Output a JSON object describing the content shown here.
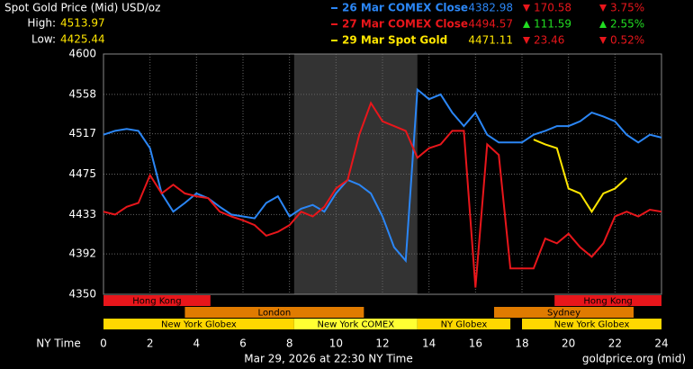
{
  "chart_data": {
    "type": "line",
    "title": "Spot Gold Price (Mid) USD/oz",
    "high_label": "High:",
    "high": 4513.97,
    "low_label": "Low:",
    "low": 4425.44,
    "xlabel": "NY Time",
    "xlim": [
      0,
      24
    ],
    "xticks": [
      0,
      2,
      4,
      6,
      8,
      10,
      12,
      14,
      16,
      18,
      20,
      22,
      24
    ],
    "ylim": [
      4350,
      4600
    ],
    "yticks": [
      4350,
      4392,
      4433,
      4475,
      4517,
      4558,
      4600
    ],
    "grid": true,
    "x": [
      0,
      0.5,
      1,
      1.5,
      2,
      2.5,
      3,
      3.5,
      4,
      4.5,
      5,
      5.5,
      6,
      6.5,
      7,
      7.5,
      8,
      8.5,
      9,
      9.5,
      10,
      10.5,
      11,
      11.5,
      12,
      12.5,
      13,
      13.5,
      14,
      14.5,
      15,
      15.5,
      16,
      16.5,
      17,
      17.5,
      18,
      18.5,
      19,
      19.5,
      20,
      20.5,
      21,
      21.5,
      22,
      22.5,
      23,
      23.5,
      24
    ],
    "series": [
      {
        "name": "26 Mar COMEX Close",
        "color": "#2b86f5",
        "last": 4382.98,
        "direction": "down",
        "change": 170.58,
        "change_pct": "3.75%",
        "values": [
          4516,
          4520,
          4522,
          4520,
          4502,
          4455,
          4436,
          4445,
          4455,
          4450,
          4441,
          4433,
          4431,
          4429,
          4445,
          4452,
          4431,
          4439,
          4443,
          4436,
          4455,
          4469,
          4464,
          4455,
          4431,
          4399,
          4385,
          4563,
          4553,
          4558,
          4539,
          4525,
          4539,
          4516,
          4508,
          4508,
          4508,
          4516,
          4520,
          4525,
          4525,
          4530,
          4539,
          4535,
          4530,
          4516,
          4508,
          4516,
          4513
        ]
      },
      {
        "name": "27 Mar COMEX Close",
        "color": "#e8161b",
        "last": 4494.57,
        "direction": "up",
        "change": 111.59,
        "change_pct": "2.55%",
        "values": [
          4436,
          4433,
          4441,
          4445,
          4474,
          4455,
          4464,
          4455,
          4452,
          4450,
          4436,
          4431,
          4427,
          4422,
          4411,
          4415,
          4422,
          4436,
          4431,
          4441,
          4460,
          4469,
          4516,
          4549,
          4530,
          4525,
          4520,
          4492,
          4502,
          4506,
          4520,
          4520,
          4357,
          4506,
          4495,
          4377,
          4377,
          4377,
          4408,
          4403,
          4413,
          4399,
          4389,
          4403,
          4431,
          4436,
          4431,
          4438,
          4436
        ]
      },
      {
        "name": "29 Mar Spot Gold",
        "color": "#ffe600",
        "last": 4471.11,
        "direction": "down",
        "change": 23.46,
        "change_pct": "0.52%",
        "values": [
          null,
          null,
          null,
          null,
          null,
          null,
          null,
          null,
          null,
          null,
          null,
          null,
          null,
          null,
          null,
          null,
          null,
          null,
          null,
          null,
          null,
          null,
          null,
          null,
          null,
          null,
          null,
          null,
          null,
          null,
          null,
          null,
          null,
          null,
          null,
          null,
          null,
          4511,
          4506,
          4502,
          4460,
          4455,
          4436,
          4455,
          4460,
          4471,
          null,
          null,
          null
        ]
      }
    ],
    "sessions": [
      "Hong Kong",
      "London",
      "New York Globex",
      "New York COMEX",
      "NY Globex",
      "Sydney",
      "Hong Kong",
      "New York Globex"
    ],
    "date_text": "Mar 29, 2026 at 22:30 NY Time",
    "source": "goldprice.org (mid)"
  }
}
